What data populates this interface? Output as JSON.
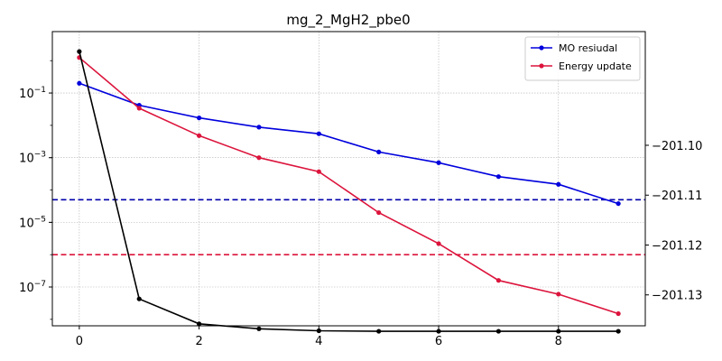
{
  "chart_data": {
    "type": "line",
    "title": "mg_2_MgH2_pbe0",
    "x": [
      0,
      1,
      2,
      3,
      4,
      5,
      6,
      7,
      8,
      9
    ],
    "xlim": [
      -0.45,
      9.45
    ],
    "xticks": [
      0,
      2,
      4,
      6,
      8
    ],
    "left_axis": {
      "scale": "log",
      "ylim_exp": [
        -8.2,
        0.9
      ],
      "tick_exps": [
        -1,
        -3,
        -5,
        -7
      ],
      "tick_labels": [
        "10^-1",
        "10^-3",
        "10^-5",
        "10^-7"
      ]
    },
    "right_axis": {
      "scale": "linear",
      "ylim": [
        -201.1362,
        -201.0772
      ],
      "ticks": [
        -201.1,
        -201.11,
        -201.12,
        -201.13
      ],
      "tick_labels": [
        "−201.10",
        "−201.11",
        "−201.12",
        "−201.13"
      ]
    },
    "series": [
      {
        "name": "MO resiudal",
        "axis": "left",
        "color": "#0000dd",
        "values": [
          0.2,
          0.042,
          0.017,
          0.0088,
          0.0055,
          0.0015,
          0.0007,
          0.00026,
          0.00015,
          3.8e-05
        ]
      },
      {
        "name": "Energy update",
        "axis": "left",
        "color": "#dc143c",
        "values": [
          1.25,
          0.034,
          0.0048,
          0.001,
          0.00037,
          2e-05,
          2.2e-06,
          1.6e-07,
          6e-08,
          1.5e-08
        ]
      },
      {
        "axis": "right",
        "color": "#000000",
        "values": [
          -201.0812,
          -201.1308,
          -201.1358,
          -201.1368,
          -201.1372,
          -201.1373,
          -201.1373,
          -201.1373,
          -201.1373,
          -201.1373
        ]
      }
    ],
    "hlines": [
      {
        "axis": "left",
        "value": 5e-05,
        "color": "#0000aa",
        "style": "dashed"
      },
      {
        "axis": "left",
        "value": 1e-06,
        "color": "#dc143c",
        "style": "dashed"
      }
    ],
    "grid": true,
    "legend_position": "top-right"
  }
}
